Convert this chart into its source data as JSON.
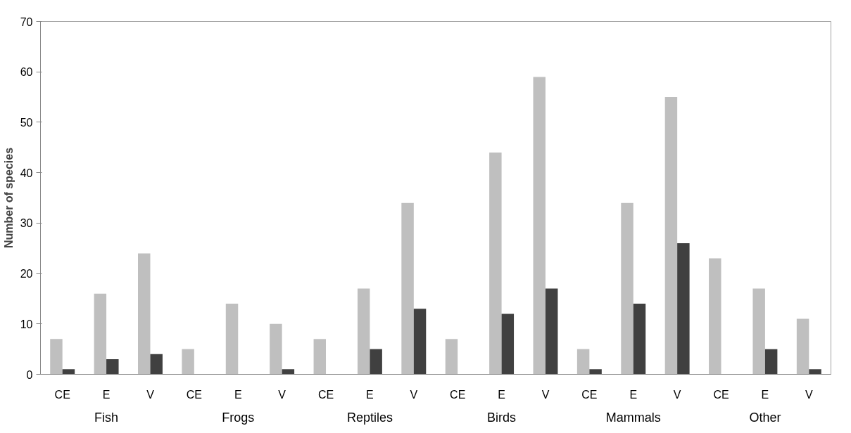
{
  "chart_data": {
    "type": "bar",
    "ylabel": "Number of species",
    "categories": [
      "CE",
      "E",
      "V",
      "CE",
      "E",
      "V",
      "CE",
      "E",
      "V",
      "CE",
      "E",
      "V",
      "CE",
      "E",
      "V",
      "CE",
      "E",
      "V"
    ],
    "annotations": [
      "Fish",
      "Frogs",
      "Reptiles",
      "Birds",
      "Mammals",
      "Other"
    ],
    "series": [
      {
        "color": "#bfbfbf",
        "values": [
          7,
          16,
          24,
          5,
          14,
          10,
          7,
          17,
          34,
          7,
          44,
          59,
          5,
          34,
          55,
          23,
          17,
          11
        ]
      },
      {
        "color": "#404040",
        "values": [
          1,
          3,
          4,
          0,
          0,
          1,
          0,
          5,
          13,
          0,
          12,
          17,
          1,
          14,
          26,
          0,
          5,
          1
        ]
      }
    ],
    "ylim": [
      0,
      70
    ],
    "yticks": [
      0,
      10,
      20,
      30,
      40,
      50,
      60,
      70
    ],
    "grid": false
  }
}
